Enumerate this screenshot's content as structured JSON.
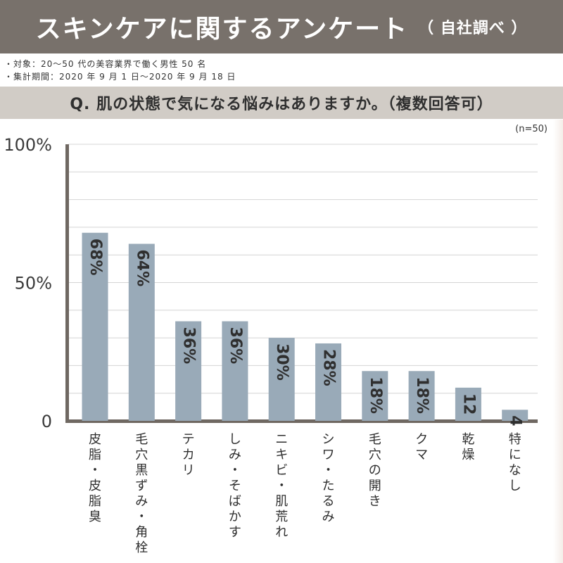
{
  "header": {
    "title": "スキンケアに関するアンケート",
    "subtitle": "（ 自社調べ ）"
  },
  "meta": {
    "target": "・対象：20〜50 代の美容業界で働く男性 50 名",
    "period": "・集計期間：2020 年 9 月 1 日〜2020 年 9 月 18 日"
  },
  "question": "Q. 肌の状態で気になる悩みはありますか。（複数回答可）",
  "sample_note": "(n=50)",
  "colors": {
    "title_bg": "#78716b",
    "question_bg": "#d1ccc6",
    "bar": "#99aab8",
    "axis": "#6f6862"
  },
  "chart_data": {
    "type": "bar",
    "title": "",
    "xlabel": "",
    "ylabel": "",
    "ylim": [
      0,
      100
    ],
    "yticks": [
      0,
      50,
      100
    ],
    "ytick_labels": [
      "0",
      "50%",
      "100%"
    ],
    "grid": true,
    "categories": [
      "皮脂・皮脂臭",
      "毛穴黒ずみ・角栓",
      "テカリ",
      "しみ・そばかす",
      "ニキビ・肌荒れ",
      "シワ・たるみ",
      "毛穴の開き",
      "クマ",
      "乾燥",
      "特になし"
    ],
    "values": [
      68,
      64,
      36,
      36,
      30,
      28,
      18,
      18,
      12,
      4
    ],
    "value_labels": [
      "68%",
      "64%",
      "36%",
      "36%",
      "30%",
      "28%",
      "18%",
      "18%",
      "12",
      "4"
    ]
  }
}
